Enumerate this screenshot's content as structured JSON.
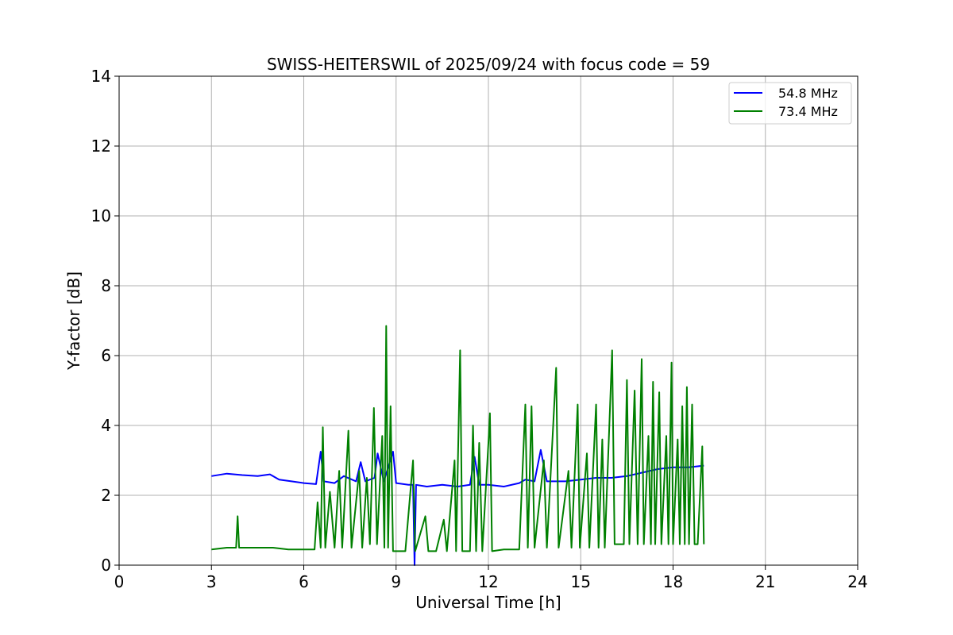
{
  "chart_data": {
    "type": "line",
    "title": "SWISS-HEITERSWIL of 2025/09/24 with focus code = 59",
    "xlabel": "Universal Time [h]",
    "ylabel": "Y-factor [dB]",
    "xlim": [
      0,
      24
    ],
    "ylim": [
      0,
      14
    ],
    "xticks": [
      0,
      3,
      6,
      9,
      12,
      15,
      18,
      21,
      24
    ],
    "yticks": [
      0,
      2,
      4,
      6,
      8,
      10,
      12,
      14
    ],
    "grid": true,
    "legend_position": "top-right",
    "series": [
      {
        "name": "54.8 MHz",
        "color": "#0000ff",
        "points": [
          [
            3.0,
            2.55
          ],
          [
            3.5,
            2.62
          ],
          [
            4.0,
            2.58
          ],
          [
            4.5,
            2.55
          ],
          [
            4.9,
            2.6
          ],
          [
            5.2,
            2.45
          ],
          [
            5.6,
            2.4
          ],
          [
            6.0,
            2.35
          ],
          [
            6.4,
            2.32
          ],
          [
            6.55,
            3.25
          ],
          [
            6.65,
            2.4
          ],
          [
            7.0,
            2.35
          ],
          [
            7.3,
            2.55
          ],
          [
            7.7,
            2.4
          ],
          [
            7.85,
            2.95
          ],
          [
            8.0,
            2.4
          ],
          [
            8.3,
            2.5
          ],
          [
            8.4,
            3.2
          ],
          [
            8.6,
            2.4
          ],
          [
            8.9,
            3.25
          ],
          [
            9.0,
            2.35
          ],
          [
            9.4,
            2.3
          ],
          [
            9.55,
            2.3
          ],
          [
            9.6,
            0.0
          ],
          [
            9.65,
            2.3
          ],
          [
            10.0,
            2.25
          ],
          [
            10.5,
            2.3
          ],
          [
            11.0,
            2.25
          ],
          [
            11.4,
            2.3
          ],
          [
            11.55,
            3.1
          ],
          [
            11.7,
            2.3
          ],
          [
            12.0,
            2.3
          ],
          [
            12.5,
            2.25
          ],
          [
            13.0,
            2.35
          ],
          [
            13.2,
            2.45
          ],
          [
            13.5,
            2.4
          ],
          [
            13.7,
            3.3
          ],
          [
            13.9,
            2.4
          ],
          [
            14.5,
            2.4
          ],
          [
            15.0,
            2.45
          ],
          [
            15.5,
            2.5
          ],
          [
            16.0,
            2.5
          ],
          [
            16.5,
            2.55
          ],
          [
            17.0,
            2.65
          ],
          [
            17.5,
            2.75
          ],
          [
            18.0,
            2.8
          ],
          [
            18.5,
            2.8
          ],
          [
            19.0,
            2.85
          ]
        ]
      },
      {
        "name": "73.4 MHz",
        "color": "#008000",
        "points": [
          [
            3.0,
            0.45
          ],
          [
            3.5,
            0.5
          ],
          [
            3.8,
            0.5
          ],
          [
            3.85,
            1.4
          ],
          [
            3.9,
            0.5
          ],
          [
            4.5,
            0.5
          ],
          [
            5.0,
            0.5
          ],
          [
            5.5,
            0.45
          ],
          [
            6.0,
            0.45
          ],
          [
            6.35,
            0.45
          ],
          [
            6.45,
            1.8
          ],
          [
            6.55,
            0.5
          ],
          [
            6.62,
            3.95
          ],
          [
            6.7,
            0.5
          ],
          [
            6.85,
            2.1
          ],
          [
            7.0,
            0.5
          ],
          [
            7.15,
            2.7
          ],
          [
            7.25,
            0.5
          ],
          [
            7.45,
            3.85
          ],
          [
            7.55,
            0.5
          ],
          [
            7.8,
            2.7
          ],
          [
            7.9,
            0.5
          ],
          [
            8.05,
            2.5
          ],
          [
            8.15,
            0.6
          ],
          [
            8.28,
            4.5
          ],
          [
            8.38,
            0.6
          ],
          [
            8.55,
            3.7
          ],
          [
            8.62,
            0.5
          ],
          [
            8.68,
            6.85
          ],
          [
            8.74,
            0.5
          ],
          [
            8.82,
            4.55
          ],
          [
            8.9,
            0.4
          ],
          [
            9.0,
            0.4
          ],
          [
            9.3,
            0.4
          ],
          [
            9.55,
            3.0
          ],
          [
            9.62,
            0.4
          ],
          [
            9.95,
            1.4
          ],
          [
            10.05,
            0.4
          ],
          [
            10.3,
            0.4
          ],
          [
            10.55,
            1.3
          ],
          [
            10.65,
            0.4
          ],
          [
            10.9,
            3.0
          ],
          [
            10.95,
            0.4
          ],
          [
            11.08,
            6.15
          ],
          [
            11.15,
            0.4
          ],
          [
            11.4,
            0.4
          ],
          [
            11.5,
            4.0
          ],
          [
            11.6,
            0.4
          ],
          [
            11.7,
            3.5
          ],
          [
            11.8,
            0.4
          ],
          [
            12.0,
            3.5
          ],
          [
            12.05,
            4.35
          ],
          [
            12.12,
            0.4
          ],
          [
            12.5,
            0.45
          ],
          [
            13.0,
            0.45
          ],
          [
            13.2,
            4.6
          ],
          [
            13.28,
            0.5
          ],
          [
            13.4,
            4.55
          ],
          [
            13.5,
            0.5
          ],
          [
            13.8,
            3.0
          ],
          [
            13.9,
            0.5
          ],
          [
            14.2,
            5.65
          ],
          [
            14.28,
            0.5
          ],
          [
            14.6,
            2.7
          ],
          [
            14.7,
            0.5
          ],
          [
            14.9,
            4.6
          ],
          [
            14.97,
            0.5
          ],
          [
            15.2,
            3.2
          ],
          [
            15.28,
            0.5
          ],
          [
            15.5,
            4.6
          ],
          [
            15.58,
            0.5
          ],
          [
            15.7,
            3.6
          ],
          [
            15.78,
            0.5
          ],
          [
            16.02,
            6.15
          ],
          [
            16.1,
            0.6
          ],
          [
            16.4,
            0.6
          ],
          [
            16.5,
            5.3
          ],
          [
            16.58,
            0.6
          ],
          [
            16.75,
            5.0
          ],
          [
            16.85,
            0.6
          ],
          [
            16.98,
            5.9
          ],
          [
            17.05,
            0.6
          ],
          [
            17.2,
            3.7
          ],
          [
            17.28,
            0.6
          ],
          [
            17.35,
            5.25
          ],
          [
            17.42,
            0.6
          ],
          [
            17.55,
            4.95
          ],
          [
            17.62,
            0.6
          ],
          [
            17.78,
            3.7
          ],
          [
            17.85,
            0.6
          ],
          [
            17.95,
            5.8
          ],
          [
            18.0,
            0.6
          ],
          [
            18.15,
            3.6
          ],
          [
            18.22,
            0.6
          ],
          [
            18.3,
            4.55
          ],
          [
            18.38,
            0.6
          ],
          [
            18.45,
            5.1
          ],
          [
            18.52,
            0.6
          ],
          [
            18.62,
            4.6
          ],
          [
            18.7,
            0.6
          ],
          [
            18.8,
            0.6
          ],
          [
            18.95,
            3.4
          ],
          [
            19.0,
            0.6
          ]
        ]
      }
    ]
  }
}
